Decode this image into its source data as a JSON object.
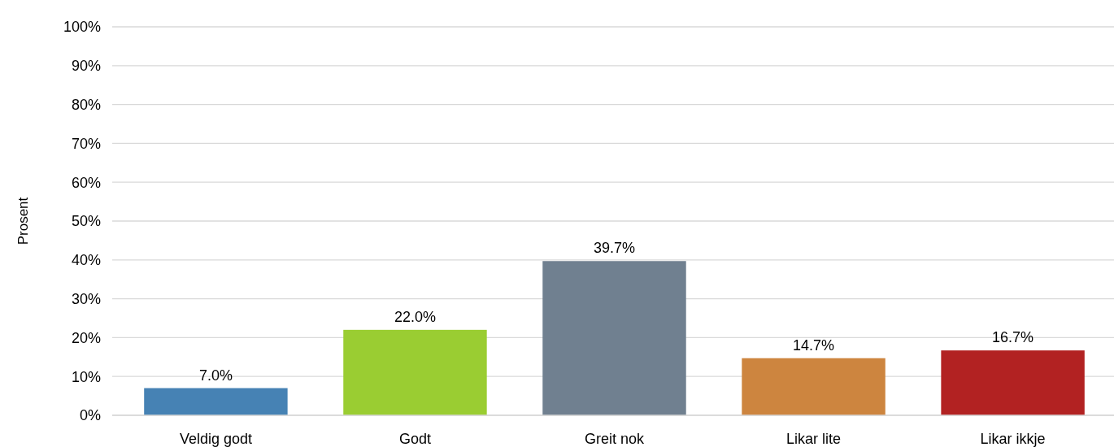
{
  "chart_data": {
    "type": "bar",
    "ylabel": "Prosent",
    "categories": [
      "Veldig godt",
      "Godt",
      "Greit nok",
      "Likar lite",
      "Likar ikkje"
    ],
    "values": [
      7.0,
      22.0,
      39.7,
      14.7,
      16.7
    ],
    "colors": [
      "#4682b4",
      "#9acd32",
      "#708090",
      "#cd853f",
      "#b22222"
    ],
    "value_labels": [
      "7.0%",
      "22.0%",
      "39.7%",
      "14.7%",
      "16.7%"
    ],
    "ylim": [
      0,
      100
    ],
    "yticks": [
      {
        "value": 0,
        "label": "0%"
      },
      {
        "value": 10,
        "label": "10%"
      },
      {
        "value": 20,
        "label": "20%"
      },
      {
        "value": 30,
        "label": "30%"
      },
      {
        "value": 40,
        "label": "40%"
      },
      {
        "value": 50,
        "label": "50%"
      },
      {
        "value": 60,
        "label": "60%"
      },
      {
        "value": 70,
        "label": "70%"
      },
      {
        "value": 80,
        "label": "80%"
      },
      {
        "value": 90,
        "label": "90%"
      },
      {
        "value": 100,
        "label": "100%"
      }
    ],
    "grid": "y"
  }
}
